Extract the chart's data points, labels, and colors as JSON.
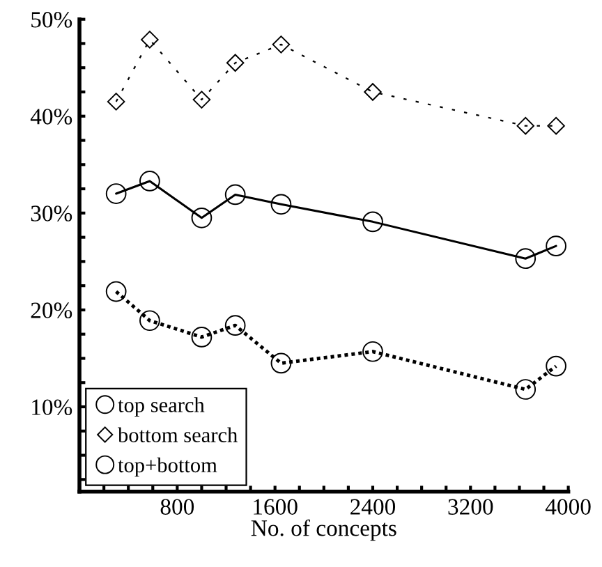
{
  "chart_data": {
    "type": "line",
    "xlabel": "No. of concepts",
    "x": [
      300,
      575,
      1000,
      1275,
      1650,
      2400,
      3650,
      3900
    ],
    "series": [
      {
        "name": "top search",
        "color": "#000000",
        "marker": "circle",
        "line_style": "dotted",
        "values": [
          21.9,
          18.9,
          17.2,
          18.4,
          14.5,
          15.7,
          11.8,
          14.2
        ]
      },
      {
        "name": "bottom search",
        "color": "#000000",
        "marker": "diamond",
        "line_style": "dashed",
        "values": [
          41.5,
          47.9,
          41.7,
          45.5,
          47.4,
          42.5,
          39.0,
          39.0
        ]
      },
      {
        "name": "top+bottom",
        "color": "#000000",
        "marker": "circle",
        "line_style": "solid",
        "values": [
          32.0,
          33.3,
          29.5,
          31.9,
          30.9,
          29.1,
          25.3,
          26.6
        ]
      }
    ],
    "xlim": [
      0,
      4000
    ],
    "xticks": [
      800,
      1600,
      2400,
      3200,
      4000
    ],
    "ylim": [
      1.25,
      50
    ],
    "yticks": [
      {
        "value": 10,
        "label": "10%"
      },
      {
        "value": 20,
        "label": "20%"
      },
      {
        "value": 30,
        "label": "30%"
      },
      {
        "value": 40,
        "label": "40%"
      },
      {
        "value": 50,
        "label": "50%"
      }
    ],
    "grid": false,
    "legend": "bottom left"
  }
}
